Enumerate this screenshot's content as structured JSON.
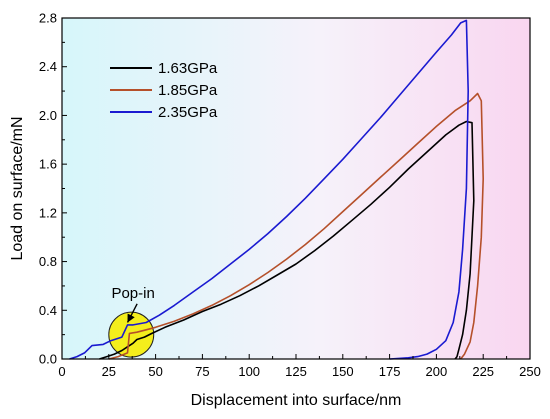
{
  "chart_data": {
    "type": "line",
    "title": "",
    "xlabel": "Displacement into surface/nm",
    "ylabel": "Load on surface/mN",
    "xlim": [
      0,
      250
    ],
    "ylim": [
      0,
      2.8
    ],
    "x_ticks": [
      0,
      25,
      50,
      75,
      100,
      125,
      150,
      175,
      200,
      225,
      250
    ],
    "y_ticks": [
      0.0,
      0.4,
      0.8,
      1.2,
      1.6,
      2.0,
      2.4,
      2.8
    ],
    "x_tick_labels": [
      "0",
      "25",
      "50",
      "75",
      "100",
      "125",
      "150",
      "175",
      "200",
      "225",
      "250"
    ],
    "y_tick_labels": [
      "0.0",
      "0.4",
      "0.8",
      "1.2",
      "1.6",
      "2.0",
      "2.4",
      "2.8"
    ],
    "legend_position": "top-left",
    "background_gradient": [
      "#d6f6fa",
      "#f6f2fa",
      "#f9d6f0"
    ],
    "series": [
      {
        "name": "1.63GPa",
        "color": "#000000",
        "x": [
          20,
          24,
          28,
          32,
          35,
          38,
          40,
          44,
          48,
          55,
          65,
          75,
          85,
          95,
          105,
          115,
          125,
          135,
          145,
          155,
          165,
          175,
          185,
          195,
          205,
          212,
          216,
          219,
          220,
          218,
          216,
          214,
          212,
          211,
          210
        ],
        "y": [
          0.0,
          0.02,
          0.04,
          0.07,
          0.1,
          0.13,
          0.16,
          0.18,
          0.21,
          0.26,
          0.32,
          0.39,
          0.45,
          0.52,
          0.6,
          0.69,
          0.78,
          0.89,
          1.01,
          1.14,
          1.27,
          1.41,
          1.56,
          1.7,
          1.84,
          1.92,
          1.95,
          1.94,
          1.3,
          0.7,
          0.4,
          0.2,
          0.08,
          0.02,
          0.0
        ]
      },
      {
        "name": "1.85GPa",
        "color": "#b5502a",
        "x": [
          25,
          30,
          35,
          36,
          40,
          45,
          50,
          60,
          70,
          80,
          90,
          100,
          110,
          120,
          130,
          140,
          150,
          160,
          170,
          180,
          190,
          200,
          210,
          218,
          222,
          224,
          225,
          224,
          222,
          220,
          218,
          215,
          213
        ],
        "y": [
          0.0,
          0.02,
          0.05,
          0.21,
          0.22,
          0.24,
          0.26,
          0.31,
          0.37,
          0.44,
          0.52,
          0.61,
          0.71,
          0.82,
          0.94,
          1.07,
          1.21,
          1.35,
          1.49,
          1.63,
          1.77,
          1.91,
          2.04,
          2.12,
          2.18,
          2.12,
          1.48,
          1.0,
          0.6,
          0.3,
          0.14,
          0.04,
          0.0
        ]
      },
      {
        "name": "2.35GPa",
        "color": "#1a1ad1",
        "x": [
          4,
          8,
          12,
          16,
          22,
          26,
          32,
          35,
          38,
          45,
          52,
          60,
          70,
          80,
          90,
          100,
          110,
          120,
          130,
          140,
          150,
          160,
          170,
          180,
          190,
          200,
          208,
          213,
          216,
          217,
          216,
          214,
          212,
          209,
          205,
          200,
          195,
          190,
          185,
          175
        ],
        "y": [
          0.0,
          0.02,
          0.05,
          0.11,
          0.12,
          0.15,
          0.18,
          0.28,
          0.28,
          0.3,
          0.36,
          0.44,
          0.55,
          0.66,
          0.78,
          0.9,
          1.03,
          1.17,
          1.32,
          1.48,
          1.64,
          1.81,
          1.98,
          2.16,
          2.34,
          2.52,
          2.66,
          2.76,
          2.78,
          2.2,
          1.4,
          0.9,
          0.55,
          0.3,
          0.15,
          0.08,
          0.04,
          0.02,
          0.01,
          0.0
        ]
      }
    ],
    "annotations": [
      {
        "text": "Pop-in",
        "x": 38,
        "y": 0.42,
        "arrow_to": [
          35,
          0.3
        ]
      }
    ],
    "highlight_circle": {
      "cx": 37,
      "cy": 0.2,
      "r_x": 12,
      "color": "#f4ee1c"
    }
  }
}
